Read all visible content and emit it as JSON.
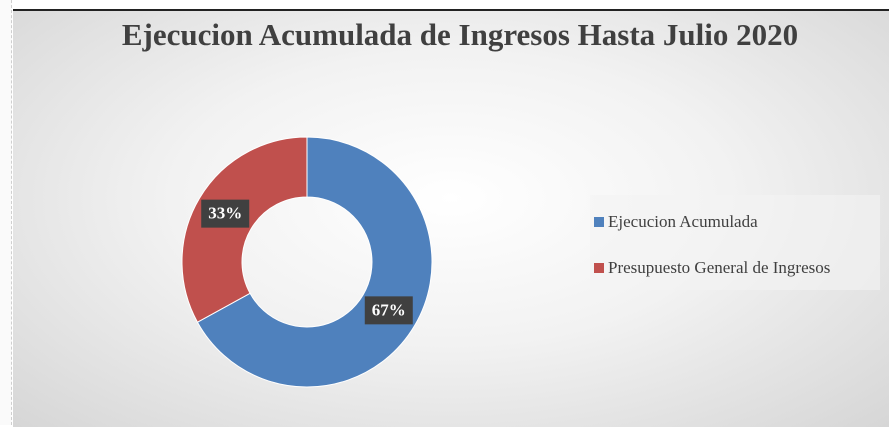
{
  "chart_data": {
    "type": "donut",
    "title": "Ejecucion Acumulada de Ingresos Hasta Julio 2020",
    "categories": [
      "Ejecucion Acumulada",
      "Presupuesto General de Ingresos"
    ],
    "values": [
      67,
      33
    ],
    "value_labels": [
      "67%",
      "33%"
    ],
    "colors": [
      "#4f81bd",
      "#c0504d"
    ],
    "legend": "right"
  }
}
